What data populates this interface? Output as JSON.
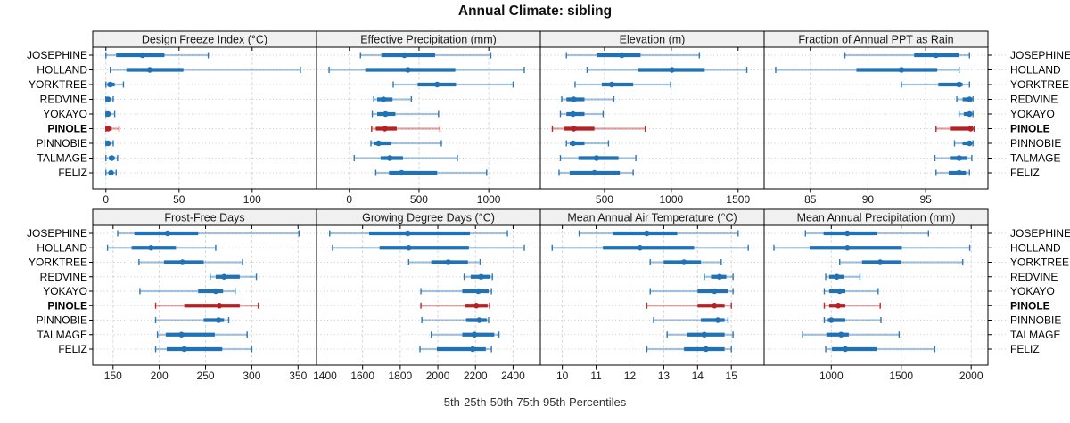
{
  "chart_data": {
    "type": "scatter",
    "subtype": "dot-whisker-percentile-trellis",
    "title": "Annual Climate: sibling",
    "caption": "5th-25th-50th-75th-95th Percentiles",
    "percentiles": [
      5,
      25,
      50,
      75,
      95
    ],
    "sites": [
      "JOSEPHINE",
      "HOLLAND",
      "YORKTREE",
      "REDVINE",
      "YOKAYO",
      "PINOLE",
      "PINNOBIE",
      "TALMAGE",
      "FELIZ"
    ],
    "highlighted_site": "PINOLE",
    "legend_position": "none",
    "grid": {
      "vertical": "dashed",
      "horizontal": "dotted"
    },
    "colors": {
      "series_blue": "#2171b5",
      "highlight_red": "#b52025",
      "strip_bg": "#f0f0f0",
      "panel_border": "#000000",
      "grid_vertical": "#d6d6d6",
      "grid_horizontal": "#c9c9c9",
      "tick_text": "#1a1a1a"
    },
    "panels": [
      {
        "label": "Design Freeze Index (°C)",
        "row": 0,
        "col": 0,
        "ticks": [
          0,
          50,
          100
        ],
        "xlim": [
          -9,
          144
        ],
        "values": {
          "JOSEPHINE": [
            0,
            7,
            25,
            40,
            70
          ],
          "HOLLAND": [
            3,
            14,
            30,
            53,
            133
          ],
          "YORKTREE": [
            0,
            1,
            3,
            6,
            12
          ],
          "REDVINE": [
            0,
            0.5,
            1.5,
            3,
            5
          ],
          "YOKAYO": [
            0,
            0.5,
            1.5,
            3,
            6
          ],
          "PINOLE": [
            0,
            0.5,
            1.5,
            4,
            9
          ],
          "PINNOBIE": [
            0,
            0.5,
            1.5,
            3,
            5
          ],
          "TALMAGE": [
            0,
            2,
            4,
            6,
            8
          ],
          "FELIZ": [
            0,
            2,
            3.5,
            5,
            7
          ]
        }
      },
      {
        "label": "Effective Precipitation (mm)",
        "row": 0,
        "col": 1,
        "ticks": [
          0,
          500,
          1000
        ],
        "xlim": [
          -235,
          1370
        ],
        "values": {
          "JOSEPHINE": [
            80,
            230,
            395,
            615,
            1015
          ],
          "HOLLAND": [
            -145,
            115,
            420,
            760,
            1255
          ],
          "YORKTREE": [
            315,
            490,
            630,
            765,
            1175
          ],
          "REDVINE": [
            175,
            200,
            245,
            310,
            445
          ],
          "YOKAYO": [
            165,
            200,
            260,
            330,
            640
          ],
          "PINOLE": [
            160,
            190,
            255,
            340,
            650
          ],
          "PINNOBIE": [
            155,
            180,
            210,
            300,
            660
          ],
          "TALMAGE": [
            35,
            225,
            290,
            385,
            775
          ],
          "FELIZ": [
            190,
            285,
            375,
            630,
            985
          ]
        }
      },
      {
        "label": "Elevation (m)",
        "row": 0,
        "col": 2,
        "ticks": [
          500,
          1000,
          1500
        ],
        "xlim": [
          20,
          1695
        ],
        "values": {
          "JOSEPHINE": [
            215,
            440,
            630,
            770,
            1210
          ],
          "HOLLAND": [
            370,
            750,
            1005,
            1250,
            1565
          ],
          "YORKTREE": [
            280,
            480,
            555,
            715,
            995
          ],
          "REDVINE": [
            180,
            215,
            270,
            350,
            570
          ],
          "YOKAYO": [
            170,
            215,
            265,
            350,
            490
          ],
          "PINOLE": [
            110,
            195,
            270,
            425,
            805
          ],
          "PINNOBIE": [
            215,
            240,
            265,
            350,
            530
          ],
          "TALMAGE": [
            170,
            305,
            440,
            605,
            735
          ],
          "FELIZ": [
            160,
            240,
            425,
            615,
            715
          ]
        }
      },
      {
        "label": "Fraction of Annual PPT as Rain",
        "row": 0,
        "col": 3,
        "ticks": [
          85,
          90,
          95
        ],
        "xlim": [
          81,
          100.4
        ],
        "values": {
          "JOSEPHINE": [
            88,
            94,
            95.9,
            97.9,
            98.8
          ],
          "HOLLAND": [
            82,
            89,
            92.9,
            96,
            97.9
          ],
          "YORKTREE": [
            92.9,
            96.1,
            97.9,
            98.2,
            98.8
          ],
          "REDVINE": [
            97.7,
            98.2,
            98.8,
            99,
            99.1
          ],
          "YOKAYO": [
            97.9,
            98.3,
            98.8,
            99,
            99.1
          ],
          "PINOLE": [
            95.9,
            97.1,
            98.9,
            99.1,
            99.2
          ],
          "PINNOBIE": [
            97.5,
            98.2,
            98.8,
            99,
            99.1
          ],
          "TALMAGE": [
            95.8,
            97.1,
            97.9,
            98.6,
            99
          ],
          "FELIZ": [
            95.9,
            97,
            97.9,
            98.5,
            98.8
          ]
        }
      },
      {
        "label": "Frost-Free Days",
        "row": 1,
        "col": 0,
        "ticks": [
          150,
          200,
          250,
          300,
          350
        ],
        "xlim": [
          128,
          370
        ],
        "values": {
          "JOSEPHINE": [
            155,
            173,
            209,
            242,
            351
          ],
          "HOLLAND": [
            144,
            170,
            191,
            218,
            261
          ],
          "YORKTREE": [
            178,
            205,
            225,
            248,
            290
          ],
          "REDVINE": [
            255,
            261,
            270,
            287,
            305
          ],
          "YOKAYO": [
            179,
            242,
            261,
            269,
            282
          ],
          "PINOLE": [
            196,
            227,
            265,
            287,
            307
          ],
          "PINNOBIE": [
            196,
            248,
            264,
            270,
            275
          ],
          "TALMAGE": [
            198,
            207,
            224,
            260,
            295
          ],
          "FELIZ": [
            196,
            208,
            227,
            268,
            300
          ]
        }
      },
      {
        "label": "Growing Degree Days (°C)",
        "row": 1,
        "col": 1,
        "ticks": [
          1400,
          1600,
          1800,
          2000,
          2200,
          2400
        ],
        "xlim": [
          1355,
          2545
        ],
        "values": {
          "JOSEPHINE": [
            1425,
            1635,
            1840,
            2170,
            2370
          ],
          "HOLLAND": [
            1440,
            1690,
            1845,
            2165,
            2460
          ],
          "YORKTREE": [
            1845,
            1965,
            2055,
            2160,
            2225
          ],
          "REDVINE": [
            2140,
            2175,
            2230,
            2280,
            2290
          ],
          "YOKAYO": [
            1910,
            2130,
            2215,
            2270,
            2285
          ],
          "PINOLE": [
            1910,
            2145,
            2205,
            2265,
            2275
          ],
          "PINNOBIE": [
            1915,
            2150,
            2220,
            2260,
            2270
          ],
          "TALMAGE": [
            1965,
            2130,
            2195,
            2300,
            2325
          ],
          "FELIZ": [
            1905,
            1995,
            2185,
            2255,
            2285
          ]
        }
      },
      {
        "label": "Mean Annual Air Temperature (°C)",
        "row": 1,
        "col": 2,
        "ticks": [
          10,
          11,
          12,
          13,
          14,
          15
        ],
        "xlim": [
          9.35,
          15.97
        ],
        "values": {
          "JOSEPHINE": [
            10.5,
            11.5,
            12.5,
            13.4,
            15.2
          ],
          "HOLLAND": [
            9.7,
            11.2,
            12.3,
            13.9,
            15.5
          ],
          "YORKTREE": [
            12.6,
            13,
            13.6,
            14.1,
            14.7
          ],
          "REDVINE": [
            14.2,
            14.4,
            14.65,
            14.85,
            15.05
          ],
          "YOKAYO": [
            12.6,
            14,
            14.5,
            14.9,
            15.05
          ],
          "PINOLE": [
            12.5,
            14,
            14.5,
            14.8,
            15
          ],
          "PINNOBIE": [
            12.7,
            14.1,
            14.6,
            14.8,
            14.9
          ],
          "TALMAGE": [
            13.1,
            13.7,
            14.2,
            14.8,
            15.05
          ],
          "FELIZ": [
            12.5,
            13.6,
            14.25,
            14.8,
            15
          ]
        }
      },
      {
        "label": "Mean Annual Precipitation (mm)",
        "row": 1,
        "col": 3,
        "ticks": [
          1000,
          1500,
          2000
        ],
        "xlim": [
          520,
          2120
        ],
        "values": {
          "JOSEPHINE": [
            815,
            945,
            1115,
            1325,
            1695
          ],
          "HOLLAND": [
            590,
            845,
            1115,
            1505,
            1990
          ],
          "YORKTREE": [
            1060,
            1220,
            1350,
            1495,
            1940
          ],
          "REDVINE": [
            960,
            985,
            1040,
            1090,
            1205
          ],
          "YOKAYO": [
            950,
            985,
            1060,
            1100,
            1335
          ],
          "PINOLE": [
            950,
            985,
            1050,
            1100,
            1350
          ],
          "PINNOBIE": [
            950,
            975,
            1000,
            1100,
            1355
          ],
          "TALMAGE": [
            795,
            965,
            1070,
            1125,
            1485
          ],
          "FELIZ": [
            960,
            1005,
            1100,
            1325,
            1740
          ]
        }
      }
    ]
  }
}
